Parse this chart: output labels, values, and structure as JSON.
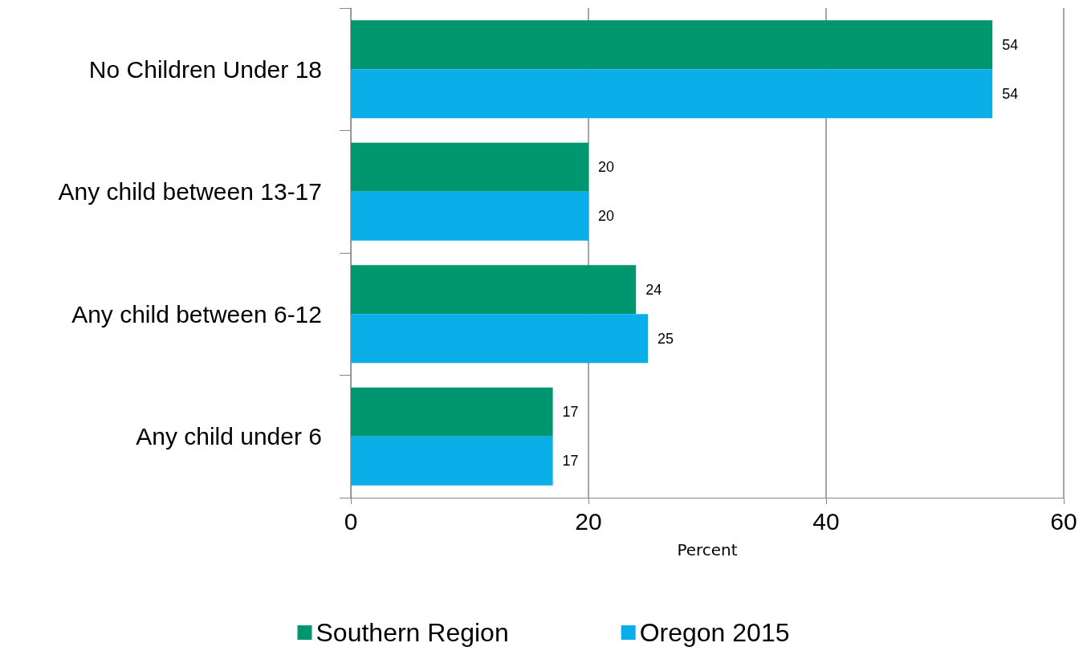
{
  "chart_data": {
    "type": "bar",
    "orientation": "horizontal",
    "xlabel": "Percent",
    "categories": [
      "No Children Under 18",
      "Any child between 13-17",
      "Any child between 6-12",
      "Any child under 6"
    ],
    "series": [
      {
        "name": "Southern Region",
        "color": "#009670",
        "values": [
          54,
          20,
          24,
          17
        ]
      },
      {
        "name": "Oregon 2015",
        "color": "#0aaee8",
        "values": [
          54,
          20,
          25,
          17
        ]
      }
    ],
    "xlim": [
      0,
      60
    ],
    "xticks": [
      0,
      20,
      40,
      60
    ],
    "grid": "x",
    "legend": "bottom",
    "data_labels": true
  }
}
